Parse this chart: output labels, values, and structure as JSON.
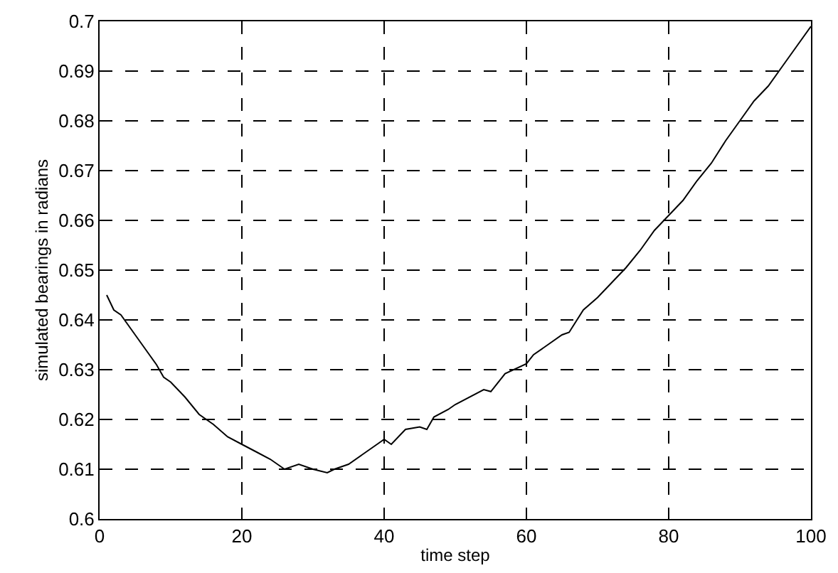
{
  "chart_data": {
    "type": "line",
    "xlabel": "time step",
    "ylabel": "simulated bearings in radians",
    "x": [
      1,
      2,
      3,
      5,
      7,
      8,
      9,
      10,
      12,
      14,
      16,
      18,
      20,
      22,
      24,
      26,
      28,
      30,
      32,
      33,
      35,
      37,
      39,
      40,
      41,
      43,
      45,
      46,
      47,
      49,
      50,
      54,
      55,
      57,
      60,
      61,
      63,
      65,
      66,
      68,
      70,
      72,
      74,
      76,
      78,
      80,
      82,
      84,
      86,
      88,
      90,
      92,
      94,
      96,
      98,
      100
    ],
    "series": [
      {
        "color": "#000000",
        "values": [
          0.645,
          0.642,
          0.641,
          0.637,
          0.633,
          0.631,
          0.6285,
          0.6275,
          0.6245,
          0.621,
          0.619,
          0.6165,
          0.615,
          0.6135,
          0.612,
          0.61,
          0.611,
          0.61,
          0.6093,
          0.61,
          0.611,
          0.613,
          0.615,
          0.616,
          0.615,
          0.618,
          0.6185,
          0.618,
          0.6205,
          0.622,
          0.623,
          0.626,
          0.6256,
          0.6292,
          0.6312,
          0.633,
          0.635,
          0.637,
          0.6375,
          0.642,
          0.6445,
          0.6475,
          0.6505,
          0.654,
          0.658,
          0.661,
          0.664,
          0.668,
          0.6715,
          0.676,
          0.68,
          0.684,
          0.687,
          0.691,
          0.695,
          0.699
        ]
      }
    ],
    "xlim": [
      0,
      100
    ],
    "xticks": [
      0,
      20,
      40,
      60,
      80,
      100
    ],
    "ylim": [
      0.6,
      0.7
    ],
    "yticks": [
      0.6,
      0.61,
      0.62,
      0.63,
      0.64,
      0.65,
      0.66,
      0.67,
      0.68,
      0.69,
      0.7
    ],
    "grid": true,
    "line_style": "solid",
    "marker": "none"
  }
}
